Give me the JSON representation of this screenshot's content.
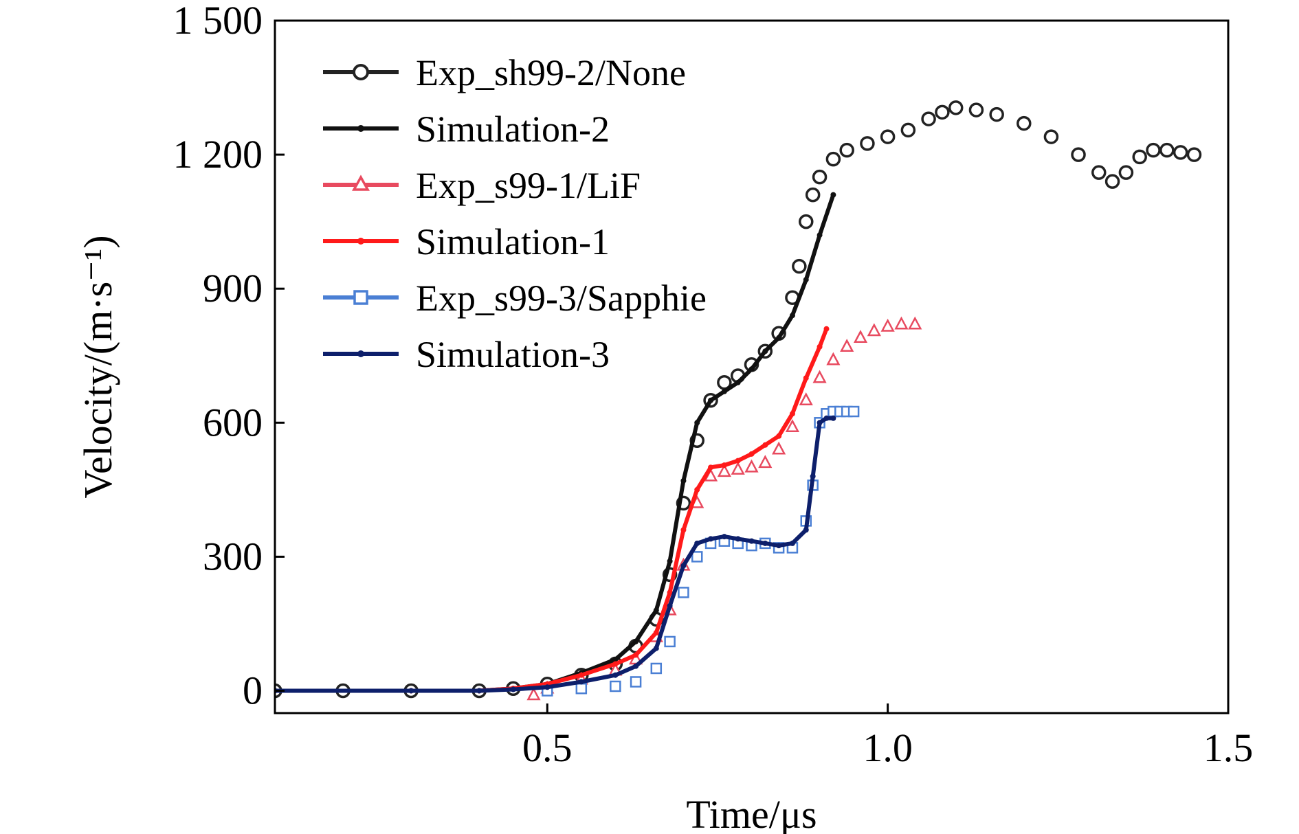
{
  "chart_data": {
    "type": "line",
    "title": "",
    "xlabel": "Time/μs",
    "ylabel": "Velocity/(m·s⁻¹)",
    "xlim": [
      0.1,
      1.5
    ],
    "ylim": [
      -50,
      1500
    ],
    "x_ticks": [
      {
        "value": 0.5,
        "label": "0.5"
      },
      {
        "value": 1.0,
        "label": "1.0"
      },
      {
        "value": 1.5,
        "label": "1.5"
      }
    ],
    "y_ticks": [
      {
        "value": 0,
        "label": "0"
      },
      {
        "value": 300,
        "label": "300"
      },
      {
        "value": 600,
        "label": "600"
      },
      {
        "value": 900,
        "label": "900"
      },
      {
        "value": 1200,
        "label": "1 200"
      },
      {
        "value": 1500,
        "label": "1 500"
      }
    ],
    "grid": false,
    "legend_position": "top-left",
    "series": [
      {
        "name": "Exp_sh99-2/None",
        "color": "#222222",
        "marker": "circle-open",
        "line": false,
        "x": [
          0.1,
          0.2,
          0.3,
          0.4,
          0.45,
          0.5,
          0.55,
          0.6,
          0.63,
          0.66,
          0.68,
          0.7,
          0.72,
          0.74,
          0.76,
          0.78,
          0.8,
          0.82,
          0.84,
          0.86,
          0.87,
          0.88,
          0.89,
          0.9,
          0.92,
          0.94,
          0.97,
          1.0,
          1.03,
          1.06,
          1.08,
          1.1,
          1.13,
          1.16,
          1.2,
          1.24,
          1.28,
          1.31,
          1.33,
          1.35,
          1.37,
          1.39,
          1.41,
          1.43,
          1.45
        ],
        "y": [
          0,
          0,
          0,
          0,
          5,
          15,
          35,
          60,
          100,
          160,
          260,
          420,
          560,
          650,
          690,
          705,
          730,
          760,
          800,
          880,
          950,
          1050,
          1110,
          1150,
          1190,
          1210,
          1225,
          1240,
          1255,
          1280,
          1295,
          1305,
          1300,
          1290,
          1270,
          1240,
          1200,
          1160,
          1140,
          1160,
          1195,
          1210,
          1210,
          1205,
          1200
        ]
      },
      {
        "name": "Simulation-2",
        "color": "#111111",
        "marker": "dot",
        "line": true,
        "x": [
          0.1,
          0.3,
          0.4,
          0.45,
          0.5,
          0.55,
          0.6,
          0.63,
          0.66,
          0.68,
          0.7,
          0.72,
          0.74,
          0.76,
          0.78,
          0.8,
          0.82,
          0.84,
          0.86,
          0.88,
          0.9,
          0.92
        ],
        "y": [
          0,
          0,
          0,
          5,
          15,
          40,
          70,
          110,
          180,
          290,
          470,
          600,
          650,
          670,
          690,
          720,
          760,
          790,
          840,
          920,
          1020,
          1110
        ]
      },
      {
        "name": "Exp_s99-1/LiF",
        "color": "#e84a5f",
        "marker": "triangle-open",
        "line": false,
        "x": [
          0.48,
          0.5,
          0.55,
          0.6,
          0.63,
          0.66,
          0.68,
          0.7,
          0.72,
          0.74,
          0.76,
          0.78,
          0.8,
          0.82,
          0.84,
          0.86,
          0.88,
          0.9,
          0.92,
          0.94,
          0.96,
          0.98,
          1.0,
          1.02,
          1.04
        ],
        "y": [
          -10,
          5,
          25,
          45,
          70,
          120,
          180,
          280,
          420,
          480,
          490,
          495,
          500,
          510,
          540,
          590,
          650,
          700,
          740,
          770,
          790,
          805,
          815,
          820,
          820
        ]
      },
      {
        "name": "Simulation-1",
        "color": "#ff1a1a",
        "marker": "dot",
        "line": true,
        "x": [
          0.1,
          0.3,
          0.4,
          0.45,
          0.5,
          0.55,
          0.6,
          0.63,
          0.66,
          0.68,
          0.7,
          0.72,
          0.74,
          0.76,
          0.78,
          0.8,
          0.82,
          0.84,
          0.86,
          0.88,
          0.9,
          0.91
        ],
        "y": [
          0,
          0,
          0,
          5,
          15,
          35,
          60,
          80,
          130,
          220,
          360,
          450,
          500,
          505,
          515,
          530,
          550,
          570,
          620,
          700,
          770,
          810
        ]
      },
      {
        "name": "Exp_s99-3/Sapphie",
        "color": "#4a7fd4",
        "marker": "square-open",
        "line": false,
        "x": [
          0.5,
          0.55,
          0.6,
          0.63,
          0.66,
          0.68,
          0.7,
          0.72,
          0.74,
          0.76,
          0.78,
          0.8,
          0.82,
          0.84,
          0.86,
          0.88,
          0.89,
          0.9,
          0.91,
          0.92,
          0.93,
          0.94,
          0.95
        ],
        "y": [
          0,
          5,
          10,
          20,
          50,
          110,
          220,
          300,
          330,
          335,
          330,
          325,
          330,
          320,
          320,
          380,
          460,
          600,
          620,
          625,
          625,
          625,
          625
        ]
      },
      {
        "name": "Simulation-3",
        "color": "#0d1f6b",
        "marker": "dot",
        "line": true,
        "x": [
          0.1,
          0.3,
          0.4,
          0.45,
          0.5,
          0.55,
          0.6,
          0.63,
          0.66,
          0.68,
          0.7,
          0.72,
          0.74,
          0.76,
          0.78,
          0.8,
          0.82,
          0.84,
          0.86,
          0.88,
          0.89,
          0.9,
          0.91,
          0.92
        ],
        "y": [
          0,
          0,
          0,
          3,
          8,
          20,
          35,
          55,
          95,
          190,
          280,
          330,
          340,
          345,
          340,
          335,
          330,
          325,
          330,
          360,
          480,
          600,
          610,
          610
        ]
      }
    ]
  }
}
